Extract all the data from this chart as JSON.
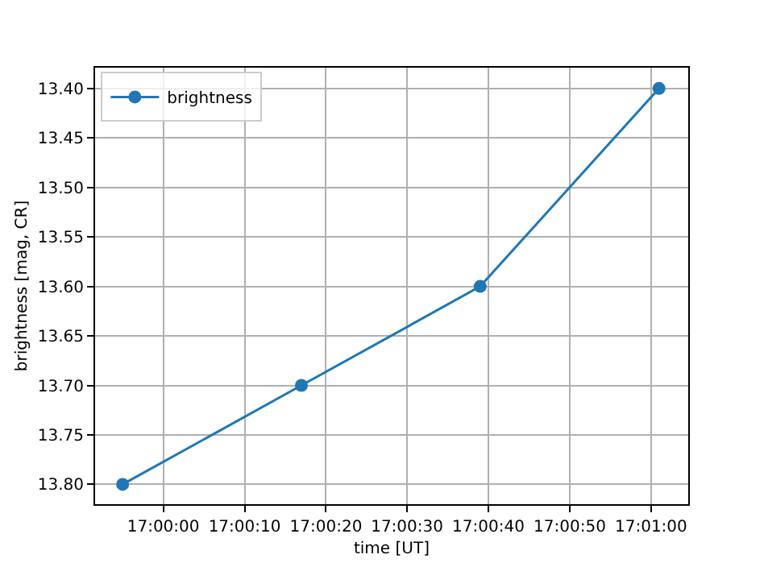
{
  "chart_data": {
    "type": "line",
    "xlabel": "time [UT]",
    "ylabel": "brightness [mag, CR]",
    "x": [
      16.99861,
      17.00472,
      17.01083,
      17.01694
    ],
    "series": [
      {
        "name": "brightness",
        "color": "#1f77b4",
        "values": [
          13.8,
          13.7,
          13.6,
          13.4
        ]
      }
    ],
    "xlim": [
      16.99767,
      17.01794
    ],
    "xticks": [
      {
        "value": 17.0,
        "label": "17:00:00"
      },
      {
        "value": 17.00278,
        "label": "17:00:10"
      },
      {
        "value": 17.00556,
        "label": "17:00:20"
      },
      {
        "value": 17.00833,
        "label": "17:00:30"
      },
      {
        "value": 17.01111,
        "label": "17:00:40"
      },
      {
        "value": 17.01389,
        "label": "17:00:50"
      },
      {
        "value": 17.01667,
        "label": "17:01:00"
      }
    ],
    "ylim": [
      13.82,
      13.379
    ],
    "yticks": [
      {
        "value": 13.4,
        "label": "13.40"
      },
      {
        "value": 13.45,
        "label": "13.45"
      },
      {
        "value": 13.5,
        "label": "13.50"
      },
      {
        "value": 13.55,
        "label": "13.55"
      },
      {
        "value": 13.6,
        "label": "13.60"
      },
      {
        "value": 13.65,
        "label": "13.65"
      },
      {
        "value": 13.7,
        "label": "13.70"
      },
      {
        "value": 13.75,
        "label": "13.75"
      },
      {
        "value": 13.8,
        "label": "13.80"
      }
    ],
    "grid": true,
    "legend": "top left",
    "marker": "circle",
    "line_style": "solid"
  }
}
